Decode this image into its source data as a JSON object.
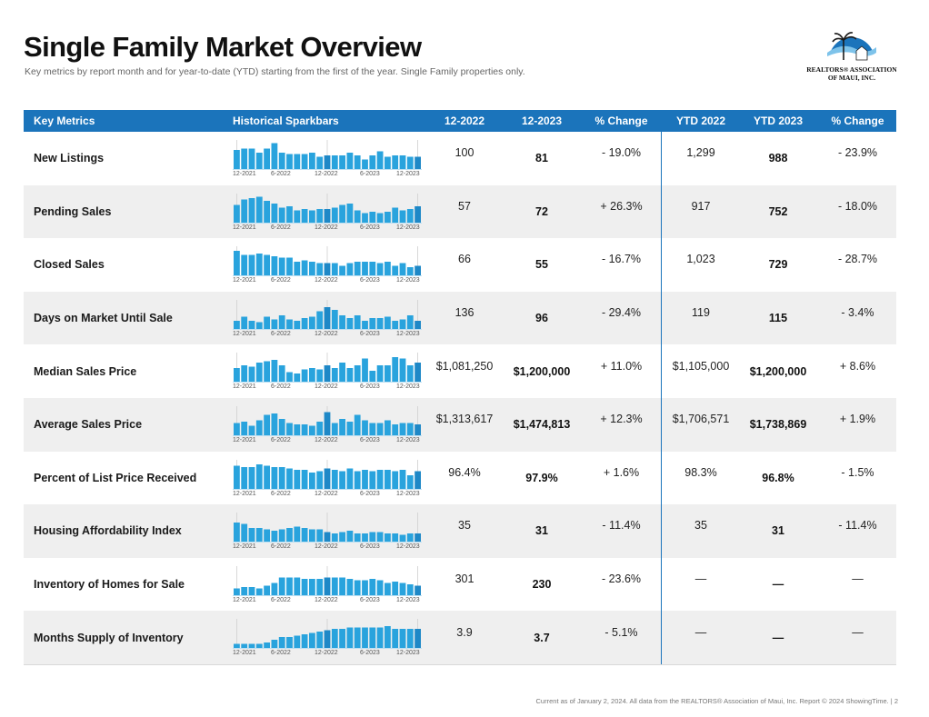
{
  "page": {
    "title": "Single Family Market Overview",
    "subtitle": "Key metrics by report month and for year-to-date (YTD) starting from the first of the year. Single Family properties only.",
    "footer": "Current as of January 2, 2024. All data from the REALTORS® Association of Maui, Inc. Report © 2024 ShowingTime.  |  2"
  },
  "logo": {
    "line1": "REALTORS® ASSOCIATION",
    "line2": "OF MAUI, INC.",
    "colors": {
      "dome": "#1b74bb",
      "wave": "#7ec3ea",
      "palm": "#1a1a1a"
    }
  },
  "colors": {
    "header": "#1b74bb",
    "bar": "#29a3dd",
    "bar_highlight": "#1e88c7",
    "row_alt": "#efefef"
  },
  "headers": {
    "metric": "Key Metrics",
    "spark": "Historical Sparkbars",
    "m2022": "12-2022",
    "m2023": "12-2023",
    "change": "% Change",
    "ytd2022": "YTD 2022",
    "ytd2023": "YTD 2023",
    "ytd_change": "% Change"
  },
  "spark_ticks": [
    "12-2021",
    "6-2022",
    "12-2022",
    "6-2023",
    "12-2023"
  ],
  "rows": [
    {
      "metric": "New Listings",
      "m2022": "100",
      "m2023": "81",
      "change": "- 19.0%",
      "ytd2022": "1,299",
      "ytd2023": "988",
      "ytd_change": "- 23.9%",
      "spark": [
        0.7,
        0.75,
        0.75,
        0.6,
        0.75,
        0.95,
        0.6,
        0.55,
        0.55,
        0.55,
        0.6,
        0.45,
        0.5,
        0.5,
        0.5,
        0.6,
        0.5,
        0.35,
        0.5,
        0.65,
        0.45,
        0.5,
        0.5,
        0.45,
        0.45
      ]
    },
    {
      "metric": "Pending Sales",
      "m2022": "57",
      "m2023": "72",
      "change": "+ 26.3%",
      "ytd2022": "917",
      "ytd2023": "752",
      "ytd_change": "- 18.0%",
      "spark": [
        0.65,
        0.85,
        0.9,
        0.95,
        0.8,
        0.7,
        0.55,
        0.6,
        0.45,
        0.5,
        0.45,
        0.5,
        0.5,
        0.55,
        0.65,
        0.7,
        0.45,
        0.35,
        0.4,
        0.35,
        0.4,
        0.55,
        0.45,
        0.5,
        0.6
      ]
    },
    {
      "metric": "Closed Sales",
      "m2022": "66",
      "m2023": "55",
      "change": "- 16.7%",
      "ytd2022": "1,023",
      "ytd2023": "729",
      "ytd_change": "- 28.7%",
      "spark": [
        0.9,
        0.75,
        0.75,
        0.8,
        0.75,
        0.7,
        0.65,
        0.65,
        0.5,
        0.55,
        0.5,
        0.45,
        0.45,
        0.45,
        0.35,
        0.45,
        0.5,
        0.5,
        0.5,
        0.45,
        0.5,
        0.35,
        0.45,
        0.3,
        0.35
      ]
    },
    {
      "metric": "Days on Market Until Sale",
      "m2022": "136",
      "m2023": "96",
      "change": "- 29.4%",
      "ytd2022": "119",
      "ytd2023": "115",
      "ytd_change": "- 3.4%",
      "spark": [
        0.3,
        0.45,
        0.3,
        0.25,
        0.45,
        0.35,
        0.5,
        0.35,
        0.3,
        0.4,
        0.45,
        0.65,
        0.8,
        0.7,
        0.5,
        0.4,
        0.5,
        0.3,
        0.4,
        0.4,
        0.45,
        0.3,
        0.35,
        0.5,
        0.3
      ]
    },
    {
      "metric": "Median Sales Price",
      "m2022": "$1,081,250",
      "m2023": "$1,200,000",
      "change": "+ 11.0%",
      "ytd2022": "$1,105,000",
      "ytd2023": "$1,200,000",
      "ytd_change": "+ 8.6%",
      "spark": [
        0.5,
        0.6,
        0.55,
        0.7,
        0.75,
        0.8,
        0.6,
        0.35,
        0.3,
        0.45,
        0.5,
        0.45,
        0.6,
        0.5,
        0.7,
        0.5,
        0.6,
        0.85,
        0.4,
        0.6,
        0.6,
        0.9,
        0.85,
        0.6,
        0.7
      ]
    },
    {
      "metric": "Average Sales Price",
      "m2022": "$1,313,617",
      "m2023": "$1,474,813",
      "change": "+ 12.3%",
      "ytd2022": "$1,706,571",
      "ytd2023": "$1,738,869",
      "ytd_change": "+ 1.9%",
      "spark": [
        0.45,
        0.5,
        0.35,
        0.55,
        0.75,
        0.8,
        0.6,
        0.45,
        0.4,
        0.4,
        0.35,
        0.5,
        0.85,
        0.45,
        0.6,
        0.5,
        0.75,
        0.55,
        0.45,
        0.45,
        0.55,
        0.4,
        0.45,
        0.45,
        0.4
      ]
    },
    {
      "metric": "Percent of List Price Received",
      "m2022": "96.4%",
      "m2023": "97.9%",
      "change": "+ 1.6%",
      "ytd2022": "98.3%",
      "ytd2023": "96.8%",
      "ytd_change": "- 1.5%",
      "spark": [
        0.85,
        0.8,
        0.8,
        0.9,
        0.85,
        0.8,
        0.8,
        0.75,
        0.7,
        0.7,
        0.6,
        0.65,
        0.75,
        0.7,
        0.65,
        0.75,
        0.65,
        0.7,
        0.65,
        0.7,
        0.7,
        0.65,
        0.7,
        0.5,
        0.65
      ]
    },
    {
      "metric": "Housing Affordability Index",
      "m2022": "35",
      "m2023": "31",
      "change": "- 11.4%",
      "ytd2022": "35",
      "ytd2023": "31",
      "ytd_change": "- 11.4%",
      "spark": [
        0.7,
        0.65,
        0.5,
        0.5,
        0.45,
        0.4,
        0.45,
        0.5,
        0.55,
        0.5,
        0.45,
        0.45,
        0.35,
        0.3,
        0.35,
        0.4,
        0.3,
        0.3,
        0.35,
        0.35,
        0.3,
        0.3,
        0.25,
        0.3,
        0.3
      ]
    },
    {
      "metric": "Inventory of Homes for Sale",
      "m2022": "301",
      "m2023": "230",
      "change": "- 23.6%",
      "ytd2022": "—",
      "ytd2023": "—",
      "ytd_change": "—",
      "spark": [
        0.25,
        0.3,
        0.3,
        0.25,
        0.35,
        0.45,
        0.65,
        0.65,
        0.65,
        0.6,
        0.6,
        0.6,
        0.65,
        0.65,
        0.65,
        0.6,
        0.55,
        0.55,
        0.6,
        0.55,
        0.45,
        0.5,
        0.45,
        0.4,
        0.35
      ]
    },
    {
      "metric": "Months Supply of Inventory",
      "m2022": "3.9",
      "m2023": "3.7",
      "change": "- 5.1%",
      "ytd2022": "—",
      "ytd2023": "—",
      "ytd_change": "—",
      "spark": [
        0.15,
        0.15,
        0.15,
        0.15,
        0.2,
        0.3,
        0.4,
        0.4,
        0.45,
        0.5,
        0.55,
        0.6,
        0.65,
        0.7,
        0.7,
        0.75,
        0.75,
        0.75,
        0.75,
        0.75,
        0.8,
        0.7,
        0.7,
        0.7,
        0.7
      ]
    }
  ]
}
